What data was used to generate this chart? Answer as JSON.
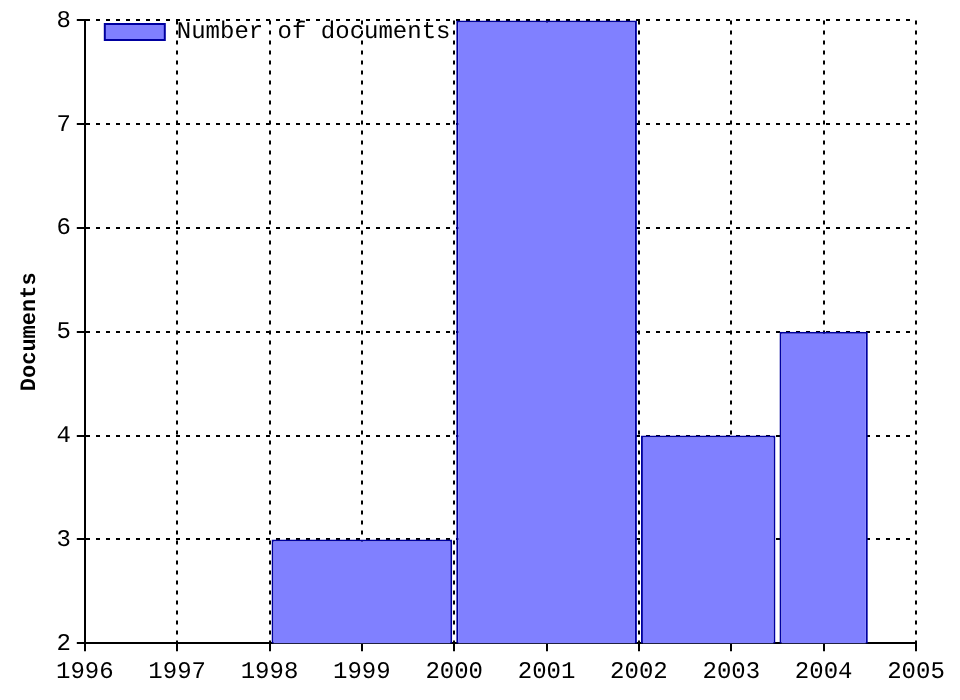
{
  "chart_data": {
    "type": "histogram",
    "ylabel": "Documents",
    "bins": [
      1998,
      2000,
      2002,
      2003.5,
      2004.5
    ],
    "series": [
      {
        "name": "Number of documents",
        "color": "#8080ff",
        "values": [
          3,
          8,
          4,
          5
        ]
      }
    ],
    "xlim": [
      1996,
      2005
    ],
    "xticks": [
      1996,
      1997,
      1998,
      1999,
      2000,
      2001,
      2002,
      2003,
      2004,
      2005
    ],
    "ylim": [
      2,
      8
    ],
    "yticks": [
      2,
      3,
      4,
      5,
      6,
      7,
      8
    ],
    "grid": true,
    "legend": "top left"
  }
}
